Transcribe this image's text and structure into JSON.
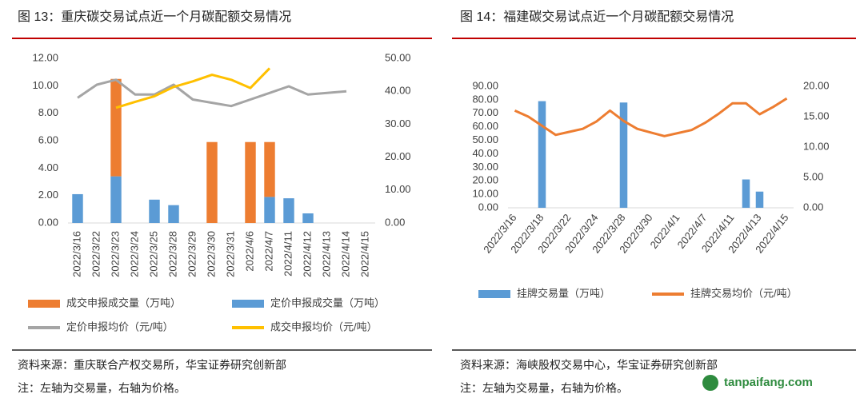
{
  "chart_data": [
    {
      "type": "bar",
      "stacked": true,
      "title": "图 13：重庆碳交易试点近一个月碳配额交易情况",
      "source": "资料来源：重庆联合产权交易所，华宝证券研究创新部",
      "note": "注：左轴为交易量，右轴为价格。",
      "categories": [
        "2022/3/16",
        "2022/3/22",
        "2022/3/23",
        "2022/3/24",
        "2022/3/25",
        "2022/3/28",
        "2022/3/29",
        "2022/3/30",
        "2022/3/31",
        "2022/4/6",
        "2022/4/7",
        "2022/4/11",
        "2022/4/12",
        "2022/4/13",
        "2022/4/14",
        "2022/4/15"
      ],
      "series": [
        {
          "name": "定价申报成交量（万吨）",
          "type": "bar",
          "color": "#5B9BD5",
          "values": [
            2.1,
            null,
            3.4,
            null,
            1.7,
            1.3,
            null,
            null,
            null,
            null,
            1.9,
            1.8,
            0.7,
            null,
            null,
            null
          ]
        },
        {
          "name": "成交申报成交量（万吨）",
          "type": "bar",
          "color": "#ED7D31",
          "values": [
            null,
            null,
            7.1,
            null,
            null,
            null,
            null,
            5.9,
            null,
            5.9,
            4.0,
            null,
            null,
            null,
            null,
            null
          ]
        },
        {
          "name": "定价申报均价（元/吨）",
          "type": "line",
          "axis": "y2",
          "color": "#A5A5A5",
          "values": [
            38,
            42,
            43.5,
            39,
            39,
            42,
            37.5,
            36.5,
            35.5,
            37.5,
            39.5,
            41.5,
            39,
            39.5,
            40,
            null
          ]
        },
        {
          "name": "成交申报均价（元/吨）",
          "type": "line",
          "axis": "y2",
          "color": "#FFC000",
          "values": [
            null,
            null,
            35,
            36.8,
            38.5,
            41.3,
            43,
            45,
            43.5,
            41,
            47,
            null,
            null,
            null,
            null,
            null
          ]
        }
      ],
      "legend_order": [
        1,
        0,
        2,
        3
      ],
      "ylim": [
        0,
        12
      ],
      "yticks": [
        {
          "value": 0,
          "label": "0.00"
        },
        {
          "value": 2,
          "label": "2.00"
        },
        {
          "value": 4,
          "label": "4.00"
        },
        {
          "value": 6,
          "label": "6.00"
        },
        {
          "value": 8,
          "label": "8.00"
        },
        {
          "value": 10,
          "label": "10.00"
        },
        {
          "value": 12,
          "label": "12.00"
        }
      ],
      "y2lim": [
        0,
        50
      ],
      "y2ticks": [
        {
          "value": 0,
          "label": "0.00"
        },
        {
          "value": 10,
          "label": "10.00"
        },
        {
          "value": 20,
          "label": "20.00"
        },
        {
          "value": 30,
          "label": "30.00"
        },
        {
          "value": 40,
          "label": "40.00"
        },
        {
          "value": 50,
          "label": "50.00"
        }
      ]
    },
    {
      "type": "bar",
      "stacked": false,
      "title": "图 14：福建碳交易试点近一个月碳配额交易情况",
      "source": "资料来源：海峡股权交易中心，华宝证券研究创新部",
      "note": "注：左轴为交易量，右轴为价格。",
      "categories": [
        "2022/3/16",
        null,
        "2022/3/18",
        null,
        "2022/3/22",
        null,
        "2022/3/24",
        null,
        "2022/3/28",
        null,
        "2022/3/30",
        null,
        "2022/4/1",
        null,
        "2022/4/7",
        null,
        "2022/4/11",
        null,
        "2022/4/13",
        null,
        "2022/4/15"
      ],
      "series": [
        {
          "name": "挂牌交易量（万吨）",
          "type": "bar",
          "color": "#5B9BD5",
          "values": [
            null,
            null,
            79,
            null,
            null,
            null,
            null,
            null,
            78,
            null,
            null,
            null,
            null,
            null,
            null,
            null,
            null,
            21,
            12,
            null,
            null
          ]
        },
        {
          "name": "挂牌交易均价（元/吨）",
          "type": "line",
          "axis": "y2",
          "color": "#ED7D31",
          "values": [
            16,
            15,
            13.5,
            12,
            12.5,
            13,
            14.2,
            16,
            14.3,
            13,
            12.4,
            11.8,
            12.3,
            12.8,
            14,
            15.5,
            17.2,
            17.2,
            15.4,
            16.6,
            18
          ]
        }
      ],
      "legend_order": [
        0,
        1
      ],
      "ylim": [
        0,
        90
      ],
      "yticks": [
        {
          "value": 0,
          "label": "0.00"
        },
        {
          "value": 10,
          "label": "10.00"
        },
        {
          "value": 20,
          "label": "20.00"
        },
        {
          "value": 30,
          "label": "30.00"
        },
        {
          "value": 40,
          "label": "40.00"
        },
        {
          "value": 50,
          "label": "50.00"
        },
        {
          "value": 60,
          "label": "60.00"
        },
        {
          "value": 70,
          "label": "70.00"
        },
        {
          "value": 80,
          "label": "80.00"
        },
        {
          "value": 90,
          "label": "90.00"
        }
      ],
      "y2lim": [
        0,
        20
      ],
      "y2ticks": [
        {
          "value": 0,
          "label": "0.00"
        },
        {
          "value": 5,
          "label": "5.00"
        },
        {
          "value": 10,
          "label": "10.00"
        },
        {
          "value": 15,
          "label": "15.00"
        },
        {
          "value": 20,
          "label": "20.00"
        }
      ]
    }
  ],
  "watermark": "tanpaifang.com"
}
